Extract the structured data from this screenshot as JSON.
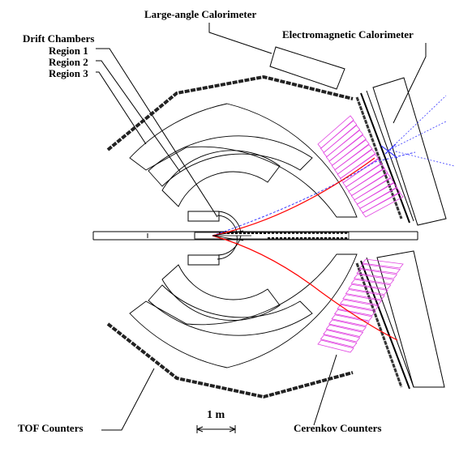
{
  "labels": {
    "large_angle_calorimeter": "Large-angle Calorimeter",
    "electromagnetic_calorimeter": "Electromagnetic Calorimeter",
    "drift_chambers": "Drift Chambers",
    "region_1": "Region 1",
    "region_2": "Region 2",
    "region_3": "Region 3",
    "tof_counters": "TOF Counters",
    "cerenkov_counters": "Cerenkov Counters",
    "scale": "1 m"
  },
  "colors": {
    "line": "#000000",
    "cerenkov": "#e040e0",
    "track_red": "#ff0000",
    "track_blue": "#3a3aff",
    "scintillator": "#333333"
  }
}
